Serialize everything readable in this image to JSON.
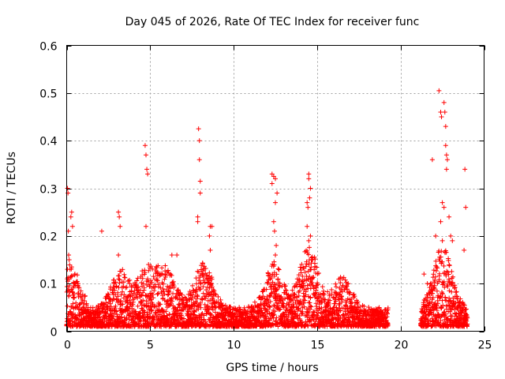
{
  "chart_data": {
    "type": "scatter",
    "title": "Day 045 of 2026, Rate Of TEC Index for receiver func",
    "xlabel": "GPS time / hours",
    "ylabel": "ROTI / TECUs",
    "xlim": [
      0,
      25
    ],
    "ylim": [
      0,
      0.6
    ],
    "xticks": [
      0,
      5,
      10,
      15,
      20,
      25
    ],
    "yticks": [
      0,
      0.1,
      0.2,
      0.3,
      0.4,
      0.5,
      0.6
    ],
    "xtick_labels": [
      "0",
      "5",
      "10",
      "15",
      "20",
      "25"
    ],
    "ytick_labels": [
      "0",
      "0.1",
      "0.2",
      "0.3",
      "0.4",
      "0.5",
      "0.6"
    ],
    "grid": true,
    "marker": "+",
    "marker_color": "#ff0000",
    "data_gap_hours": [
      19.25,
      21.2
    ],
    "series": [
      {
        "points": [
          [
            0.05,
            0.3
          ],
          [
            0.08,
            0.29
          ],
          [
            0.1,
            0.21
          ],
          [
            0.12,
            0.16
          ],
          [
            0.15,
            0.15
          ],
          [
            0.2,
            0.13
          ],
          [
            0.25,
            0.24
          ],
          [
            0.3,
            0.25
          ],
          [
            0.35,
            0.22
          ],
          [
            2.1,
            0.21
          ],
          [
            3.1,
            0.25
          ],
          [
            3.15,
            0.24
          ],
          [
            3.2,
            0.22
          ],
          [
            3.1,
            0.16
          ],
          [
            4.7,
            0.39
          ],
          [
            4.75,
            0.37
          ],
          [
            4.8,
            0.34
          ],
          [
            4.85,
            0.33
          ],
          [
            4.75,
            0.22
          ],
          [
            4.9,
            0.14
          ],
          [
            6.3,
            0.16
          ],
          [
            6.6,
            0.16
          ],
          [
            7.9,
            0.425
          ],
          [
            7.95,
            0.4
          ],
          [
            7.95,
            0.36
          ],
          [
            8.0,
            0.315
          ],
          [
            8.0,
            0.29
          ],
          [
            7.85,
            0.24
          ],
          [
            7.85,
            0.23
          ],
          [
            8.6,
            0.22
          ],
          [
            8.7,
            0.22
          ],
          [
            8.55,
            0.2
          ],
          [
            8.6,
            0.17
          ],
          [
            12.3,
            0.33
          ],
          [
            12.4,
            0.325
          ],
          [
            12.5,
            0.32
          ],
          [
            12.3,
            0.31
          ],
          [
            12.6,
            0.29
          ],
          [
            12.5,
            0.27
          ],
          [
            12.4,
            0.23
          ],
          [
            12.45,
            0.21
          ],
          [
            12.55,
            0.18
          ],
          [
            12.5,
            0.16
          ],
          [
            14.4,
            0.27
          ],
          [
            14.45,
            0.26
          ],
          [
            14.5,
            0.33
          ],
          [
            14.5,
            0.32
          ],
          [
            14.6,
            0.3
          ],
          [
            14.55,
            0.28
          ],
          [
            14.4,
            0.22
          ],
          [
            14.6,
            0.2
          ],
          [
            14.5,
            0.19
          ],
          [
            14.7,
            0.15
          ],
          [
            21.9,
            0.36
          ],
          [
            22.1,
            0.2
          ],
          [
            22.3,
            0.505
          ],
          [
            22.4,
            0.46
          ],
          [
            22.45,
            0.45
          ],
          [
            22.6,
            0.48
          ],
          [
            22.65,
            0.46
          ],
          [
            22.7,
            0.43
          ],
          [
            22.7,
            0.39
          ],
          [
            22.75,
            0.37
          ],
          [
            22.8,
            0.36
          ],
          [
            22.75,
            0.34
          ],
          [
            22.5,
            0.27
          ],
          [
            22.6,
            0.26
          ],
          [
            22.4,
            0.23
          ],
          [
            22.9,
            0.24
          ],
          [
            23.0,
            0.2
          ],
          [
            22.5,
            0.19
          ],
          [
            23.1,
            0.19
          ],
          [
            23.85,
            0.34
          ],
          [
            23.9,
            0.26
          ],
          [
            23.8,
            0.17
          ],
          [
            21.4,
            0.12
          ],
          [
            21.6,
            0.1
          ]
        ],
        "baseline_band": {
          "x_ranges": [
            [
              0,
              19.25
            ],
            [
              21.2,
              24
            ]
          ],
          "typical_range": [
            0.005,
            0.06
          ]
        }
      }
    ]
  }
}
